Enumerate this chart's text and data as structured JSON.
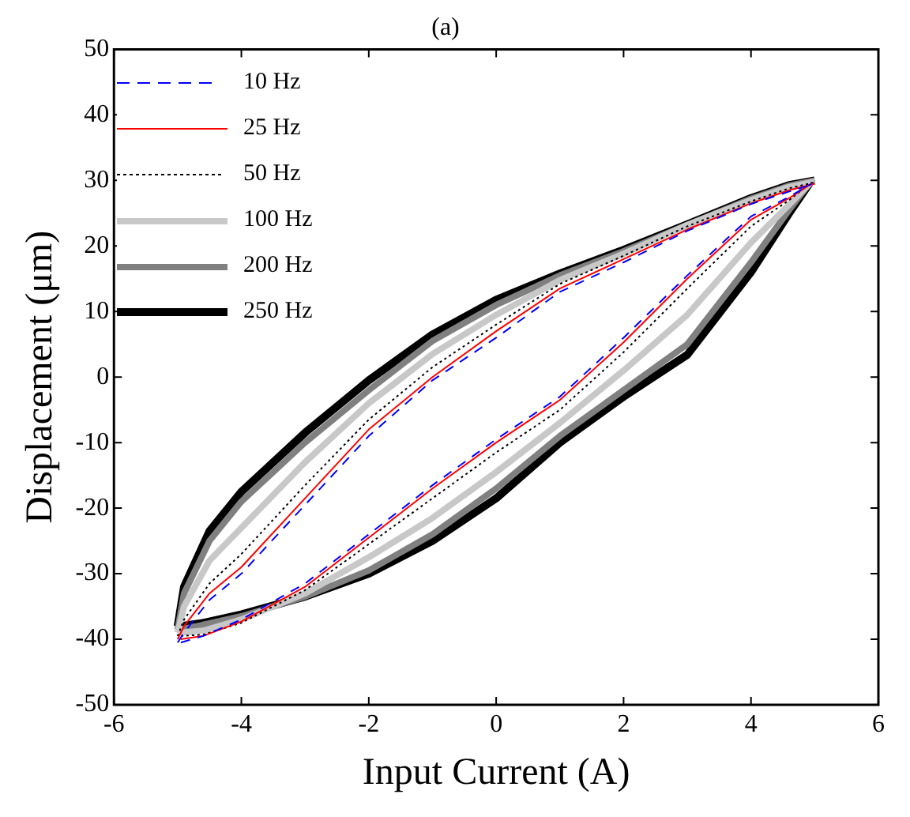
{
  "chart_data": {
    "type": "line",
    "title": "(a)",
    "xlabel": "Input Current (A)",
    "ylabel": "Displacement (μm)",
    "xlim": [
      -6,
      6
    ],
    "ylim": [
      -50,
      50
    ],
    "xticks": [
      -6,
      -4,
      -2,
      0,
      2,
      4,
      6
    ],
    "yticks": [
      -50,
      -40,
      -30,
      -20,
      -10,
      0,
      10,
      20,
      30,
      40,
      50
    ],
    "grid": false,
    "legend": "top left",
    "marker": "none",
    "series": [
      {
        "name": "10 Hz",
        "color": "#0000ff",
        "line_style": "dashed",
        "x": [
          -5,
          -4.9,
          -4.5,
          -4,
          -3,
          -2,
          -1,
          0,
          1,
          2,
          3,
          4,
          4.6,
          5
        ],
        "values": [
          -40.5,
          -39,
          -34,
          -30,
          -19.5,
          -9,
          -0.5,
          6,
          13,
          17.5,
          22.3,
          26.4,
          28.3,
          29.5
        ]
      },
      {
        "color": "#0000ff",
        "line_style": "dashed",
        "x": [
          -4.95,
          -4.6,
          -4,
          -3,
          -2,
          -1,
          0,
          1,
          2,
          3,
          4,
          4.6,
          4.95
        ],
        "values": [
          -40.5,
          -39.5,
          -37,
          -31.5,
          -24,
          -16.5,
          -9.5,
          -3,
          6,
          15.5,
          24.5,
          27.5,
          29.5
        ]
      },
      {
        "name": "25 Hz",
        "color": "#ff0000",
        "line_style": "solid",
        "x": [
          -5,
          -4.9,
          -4.5,
          -4,
          -3,
          -2,
          -1,
          0,
          1,
          2,
          3,
          4,
          4.6,
          5
        ],
        "values": [
          -40,
          -38,
          -33,
          -29,
          -18.5,
          -8,
          0,
          7,
          13.5,
          18,
          22.5,
          26.5,
          28.5,
          29.5
        ]
      },
      {
        "color": "#ff0000",
        "line_style": "solid",
        "x": [
          -4.95,
          -4.6,
          -4,
          -3,
          -2,
          -1,
          0,
          1,
          2,
          3,
          4,
          4.6,
          4.95
        ],
        "values": [
          -40,
          -39.5,
          -37.3,
          -32,
          -24.5,
          -17,
          -10,
          -3.5,
          5.3,
          15,
          24,
          27.3,
          29.5
        ]
      },
      {
        "name": "50 Hz",
        "color": "#000000",
        "line_style": "dotted",
        "x": [
          -5,
          -4.9,
          -4.5,
          -4,
          -3,
          -2,
          -1,
          0,
          1,
          2,
          3,
          4,
          4.6,
          5
        ],
        "values": [
          -39.5,
          -37,
          -31.5,
          -27,
          -16.5,
          -6.5,
          1.5,
          8,
          14.2,
          18.5,
          23,
          26.8,
          28.8,
          29.7
        ]
      },
      {
        "color": "#000000",
        "line_style": "dotted",
        "x": [
          -4.95,
          -4.6,
          -4,
          -3,
          -2,
          -1,
          0,
          1,
          2,
          3,
          4,
          4.6,
          4.95
        ],
        "values": [
          -39.5,
          -39.3,
          -37.5,
          -32.5,
          -25.5,
          -18.5,
          -11.5,
          -5,
          3.8,
          13.5,
          23,
          27,
          29.7
        ]
      },
      {
        "name": "100 Hz",
        "color": "#c8c8c8",
        "line_style": "solid",
        "x": [
          -5,
          -4.9,
          -4.5,
          -4,
          -3,
          -2,
          -1,
          0,
          1,
          2,
          3,
          4,
          4.6,
          5
        ],
        "values": [
          -39,
          -35,
          -28,
          -23,
          -13,
          -4,
          3.5,
          9.5,
          14.8,
          18.8,
          23.2,
          27,
          29,
          29.8
        ]
      },
      {
        "color": "#c8c8c8",
        "line_style": "solid",
        "x": [
          -4.95,
          -4.6,
          -4,
          -3,
          -2,
          -1,
          0,
          1,
          2,
          3,
          4,
          4.6,
          4.95
        ],
        "values": [
          -39,
          -38.7,
          -37,
          -33,
          -27.5,
          -21.5,
          -14.5,
          -7,
          1,
          9.5,
          20.5,
          26.3,
          29.8
        ]
      },
      {
        "name": "200 Hz",
        "color": "#808080",
        "line_style": "solid",
        "x": [
          -5,
          -4.9,
          -4.5,
          -4,
          -3,
          -2,
          -1,
          0,
          1,
          2,
          3,
          4,
          4.6,
          5
        ],
        "values": [
          -38.5,
          -33,
          -25,
          -19,
          -10,
          -2,
          5.5,
          11,
          15.5,
          19.2,
          23.2,
          27.2,
          29.2,
          30
        ]
      },
      {
        "color": "#808080",
        "line_style": "solid",
        "x": [
          -4.95,
          -4.6,
          -4,
          -3,
          -2,
          -1,
          0,
          1,
          2,
          3,
          4,
          4.6,
          4.95
        ],
        "values": [
          -38.5,
          -37.8,
          -36.5,
          -33.5,
          -29.5,
          -24,
          -17,
          -9,
          -2,
          5,
          17.5,
          25.5,
          30
        ]
      },
      {
        "name": "250 Hz",
        "color": "#000000",
        "line_style": "solid",
        "x": [
          -5,
          -4.9,
          -4.5,
          -4,
          -3,
          -2,
          -1,
          0,
          1,
          2,
          3,
          4,
          4.6,
          5
        ],
        "values": [
          -38,
          -32,
          -23.5,
          -17.5,
          -8.5,
          -0.5,
          6.5,
          11.8,
          15.8,
          19.4,
          23.3,
          27.3,
          29.3,
          30
        ]
      },
      {
        "color": "#000000",
        "line_style": "solid",
        "x": [
          -4.95,
          -4.6,
          -4,
          -3,
          -2,
          -1,
          0,
          1,
          2,
          3,
          4,
          4.6,
          4.95
        ],
        "values": [
          -38,
          -37.5,
          -36.2,
          -33.5,
          -30,
          -25,
          -18.5,
          -10,
          -3,
          3.4,
          16,
          25,
          30
        ]
      }
    ]
  }
}
